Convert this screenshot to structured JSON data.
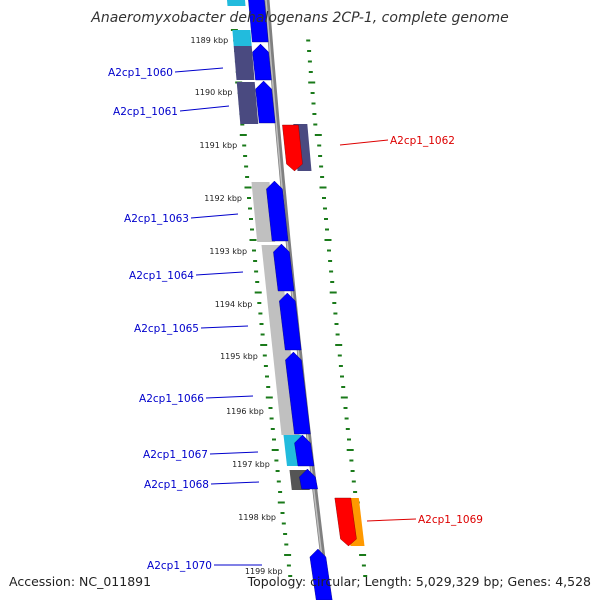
{
  "title": "Anaeromyxobacter dehalogenans 2CP-1, complete genome",
  "footer": {
    "accession": "Accession: NC_011891",
    "summary": "Topology: circular; Length: 5,029,329 bp; Genes: 4,528"
  },
  "kbp_labels": [
    "1189 kbp",
    "1190 kbp",
    "1191 kbp",
    "1192 kbp",
    "1193 kbp",
    "1194 kbp",
    "1195 kbp",
    "1196 kbp",
    "1197 kbp",
    "1198 kbp",
    "1199 kbp"
  ],
  "genes": [
    {
      "label": "A2cp1_1060",
      "strand": "forward",
      "color": "#0000ff"
    },
    {
      "label": "A2cp1_1061",
      "strand": "forward",
      "color": "#0000ff"
    },
    {
      "label": "A2cp1_1062",
      "strand": "reverse",
      "color": "#ff0000"
    },
    {
      "label": "A2cp1_1063",
      "strand": "forward",
      "color": "#0000ff"
    },
    {
      "label": "A2cp1_1064",
      "strand": "forward",
      "color": "#0000ff"
    },
    {
      "label": "A2cp1_1065",
      "strand": "forward",
      "color": "#0000ff"
    },
    {
      "label": "A2cp1_1066",
      "strand": "forward",
      "color": "#0000ff"
    },
    {
      "label": "A2cp1_1067",
      "strand": "forward",
      "color": "#0000ff"
    },
    {
      "label": "A2cp1_1068",
      "strand": "forward",
      "color": "#0000ff"
    },
    {
      "label": "A2cp1_1069",
      "strand": "reverse",
      "color": "#ff0000"
    },
    {
      "label": "A2cp1_1070",
      "strand": "forward",
      "color": "#0000ff"
    }
  ],
  "colors": {
    "forward_label": "#0000cc",
    "reverse_label": "#dd0000",
    "tick": "#1a7a1a",
    "backbone": "#808080",
    "cog_cyan": "#22bbdd",
    "cog_slate": "#4a4a80",
    "cog_lightgray": "#c0c0c0",
    "cog_darkgray": "#555555",
    "cog_orange": "#ff9900"
  }
}
